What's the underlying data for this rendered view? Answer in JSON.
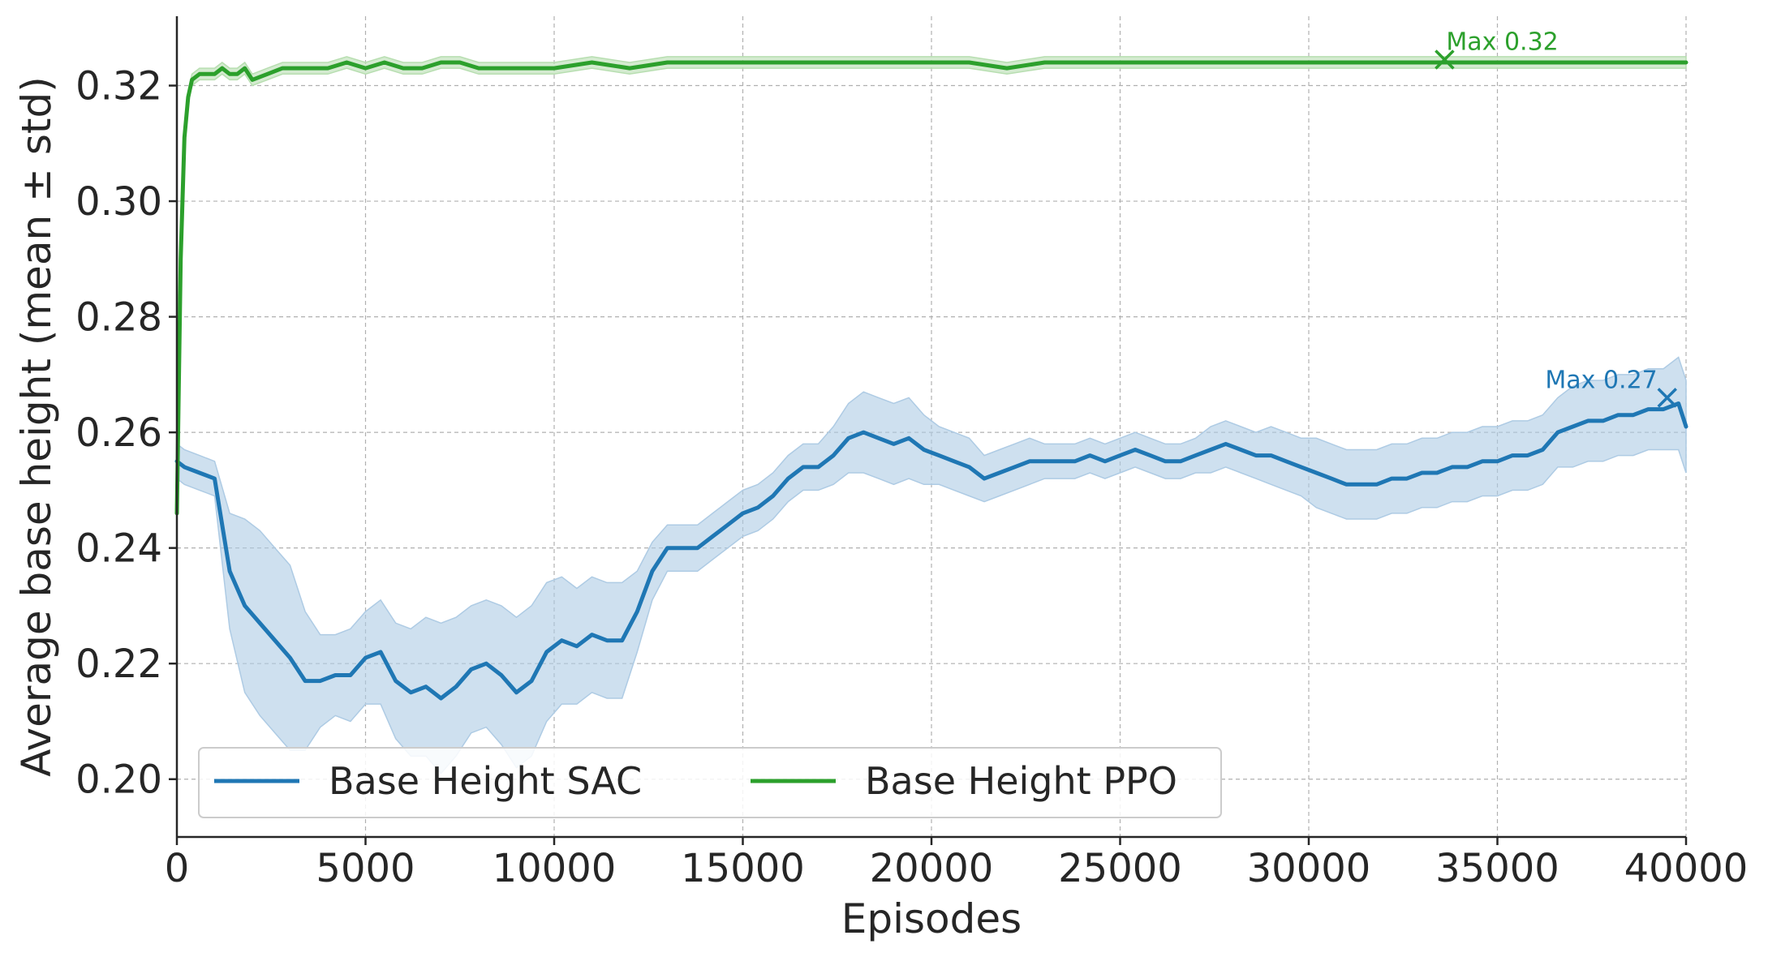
{
  "chart_data": {
    "type": "line",
    "title": "",
    "xlabel": "Episodes",
    "ylabel": "Average base height (mean ± std)",
    "xlim": [
      0,
      40000
    ],
    "ylim": [
      0.19,
      0.332
    ],
    "xticks": [
      0,
      5000,
      10000,
      15000,
      20000,
      25000,
      30000,
      35000,
      40000
    ],
    "xtick_labels": [
      "0",
      "5000",
      "10000",
      "15000",
      "20000",
      "25000",
      "30000",
      "35000",
      "40000"
    ],
    "yticks": [
      0.2,
      0.22,
      0.24,
      0.26,
      0.28,
      0.3,
      0.32
    ],
    "ytick_labels": [
      "0.20",
      "0.22",
      "0.24",
      "0.26",
      "0.28",
      "0.30",
      "0.32"
    ],
    "grid": true,
    "legend_position": "bottom-left",
    "series": [
      {
        "name": "Base Height SAC",
        "color": "#1f77b4",
        "fill_color": "#aecbe4",
        "x": [
          0,
          200,
          600,
          1000,
          1400,
          1800,
          2200,
          2600,
          3000,
          3400,
          3800,
          4200,
          4600,
          5000,
          5400,
          5800,
          6200,
          6600,
          7000,
          7400,
          7800,
          8200,
          8600,
          9000,
          9400,
          9800,
          10200,
          10600,
          11000,
          11400,
          11800,
          12200,
          12600,
          13000,
          13400,
          13800,
          14200,
          14600,
          15000,
          15400,
          15800,
          16200,
          16600,
          17000,
          17400,
          17800,
          18200,
          18600,
          19000,
          19400,
          19800,
          20200,
          20600,
          21000,
          21400,
          21800,
          22200,
          22600,
          23000,
          23400,
          23800,
          24200,
          24600,
          25000,
          25400,
          25800,
          26200,
          26600,
          27000,
          27400,
          27800,
          28200,
          28600,
          29000,
          29400,
          29800,
          30200,
          30600,
          31000,
          31400,
          31800,
          32200,
          32600,
          33000,
          33400,
          33800,
          34200,
          34600,
          35000,
          35400,
          35800,
          36200,
          36600,
          37000,
          37400,
          37800,
          38200,
          38600,
          39000,
          39400,
          39800,
          40000
        ],
        "mean": [
          0.255,
          0.254,
          0.253,
          0.252,
          0.236,
          0.23,
          0.227,
          0.224,
          0.221,
          0.217,
          0.217,
          0.218,
          0.218,
          0.221,
          0.222,
          0.217,
          0.215,
          0.216,
          0.214,
          0.216,
          0.219,
          0.22,
          0.218,
          0.215,
          0.217,
          0.222,
          0.224,
          0.223,
          0.225,
          0.224,
          0.224,
          0.229,
          0.236,
          0.24,
          0.24,
          0.24,
          0.242,
          0.244,
          0.246,
          0.247,
          0.249,
          0.252,
          0.254,
          0.254,
          0.256,
          0.259,
          0.26,
          0.259,
          0.258,
          0.259,
          0.257,
          0.256,
          0.255,
          0.254,
          0.252,
          0.253,
          0.254,
          0.255,
          0.255,
          0.255,
          0.255,
          0.256,
          0.255,
          0.256,
          0.257,
          0.256,
          0.255,
          0.255,
          0.256,
          0.257,
          0.258,
          0.257,
          0.256,
          0.256,
          0.255,
          0.254,
          0.253,
          0.252,
          0.251,
          0.251,
          0.251,
          0.252,
          0.252,
          0.253,
          0.253,
          0.254,
          0.254,
          0.255,
          0.255,
          0.256,
          0.256,
          0.257,
          0.26,
          0.261,
          0.262,
          0.262,
          0.263,
          0.263,
          0.264,
          0.264,
          0.265,
          0.261
        ],
        "std": [
          0.003,
          0.003,
          0.003,
          0.003,
          0.01,
          0.015,
          0.016,
          0.016,
          0.016,
          0.012,
          0.008,
          0.007,
          0.008,
          0.008,
          0.009,
          0.01,
          0.011,
          0.012,
          0.013,
          0.012,
          0.011,
          0.011,
          0.012,
          0.013,
          0.013,
          0.012,
          0.011,
          0.01,
          0.01,
          0.01,
          0.01,
          0.007,
          0.005,
          0.004,
          0.004,
          0.004,
          0.004,
          0.004,
          0.004,
          0.004,
          0.004,
          0.004,
          0.004,
          0.004,
          0.005,
          0.006,
          0.007,
          0.007,
          0.007,
          0.007,
          0.006,
          0.005,
          0.005,
          0.005,
          0.004,
          0.004,
          0.004,
          0.004,
          0.003,
          0.003,
          0.003,
          0.003,
          0.003,
          0.003,
          0.003,
          0.003,
          0.003,
          0.003,
          0.003,
          0.004,
          0.004,
          0.004,
          0.004,
          0.005,
          0.005,
          0.005,
          0.006,
          0.006,
          0.006,
          0.006,
          0.006,
          0.006,
          0.006,
          0.006,
          0.006,
          0.006,
          0.006,
          0.006,
          0.006,
          0.006,
          0.006,
          0.006,
          0.006,
          0.007,
          0.007,
          0.007,
          0.007,
          0.007,
          0.007,
          0.007,
          0.008,
          0.008
        ],
        "max_annotation": {
          "x": 39500,
          "y": 0.266,
          "label": "Max 0.27"
        }
      },
      {
        "name": "Base Height PPO",
        "color": "#2ca02c",
        "fill_color": "#b7deb0",
        "x": [
          0,
          100,
          200,
          300,
          400,
          600,
          800,
          1000,
          1200,
          1400,
          1600,
          1800,
          2000,
          2400,
          2800,
          3200,
          3600,
          4000,
          4500,
          5000,
          5500,
          6000,
          6500,
          7000,
          7500,
          8000,
          8500,
          9000,
          10000,
          11000,
          12000,
          13000,
          14000,
          15000,
          16000,
          17000,
          18000,
          19000,
          20000,
          21000,
          22000,
          23000,
          24000,
          25000,
          26000,
          27000,
          28000,
          29000,
          30000,
          31000,
          32000,
          33000,
          34000,
          35000,
          36000,
          37000,
          38000,
          39000,
          40000
        ],
        "mean": [
          0.246,
          0.29,
          0.311,
          0.318,
          0.321,
          0.322,
          0.322,
          0.322,
          0.323,
          0.322,
          0.322,
          0.323,
          0.321,
          0.322,
          0.323,
          0.323,
          0.323,
          0.323,
          0.324,
          0.323,
          0.324,
          0.323,
          0.323,
          0.324,
          0.324,
          0.323,
          0.323,
          0.323,
          0.323,
          0.324,
          0.323,
          0.324,
          0.324,
          0.324,
          0.324,
          0.324,
          0.324,
          0.324,
          0.324,
          0.324,
          0.323,
          0.324,
          0.324,
          0.324,
          0.324,
          0.324,
          0.324,
          0.324,
          0.324,
          0.324,
          0.324,
          0.324,
          0.324,
          0.324,
          0.324,
          0.324,
          0.324,
          0.324,
          0.324
        ],
        "std": [
          0.0,
          0.002,
          0.002,
          0.001,
          0.001,
          0.001,
          0.001,
          0.001,
          0.001,
          0.001,
          0.001,
          0.001,
          0.001,
          0.001,
          0.001,
          0.001,
          0.001,
          0.001,
          0.001,
          0.001,
          0.001,
          0.001,
          0.001,
          0.001,
          0.001,
          0.001,
          0.001,
          0.001,
          0.001,
          0.001,
          0.001,
          0.001,
          0.001,
          0.001,
          0.001,
          0.001,
          0.001,
          0.001,
          0.001,
          0.001,
          0.001,
          0.001,
          0.001,
          0.001,
          0.001,
          0.001,
          0.001,
          0.001,
          0.001,
          0.001,
          0.001,
          0.001,
          0.001,
          0.001,
          0.001,
          0.001,
          0.001,
          0.001,
          0.001
        ],
        "max_annotation": {
          "x": 33600,
          "y": 0.3245,
          "label": "Max 0.32"
        }
      }
    ]
  },
  "colors": {
    "axis": "#262626",
    "grid": "#b0b0b0",
    "legend_border": "#cccccc"
  }
}
